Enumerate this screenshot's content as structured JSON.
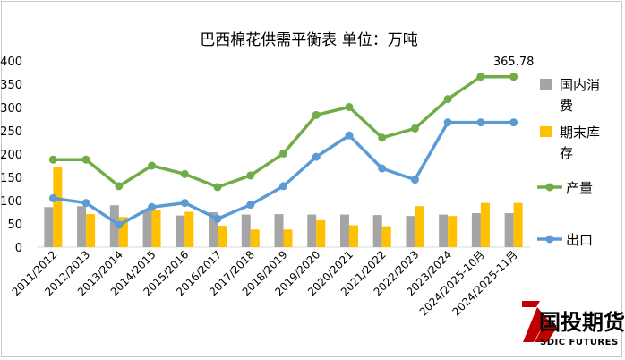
{
  "chart_data": {
    "type": "bar",
    "title": "巴西棉花供需平衡表 单位：万吨",
    "xlabel": "",
    "ylabel": "",
    "ylim": [
      0,
      400
    ],
    "yticks": [
      "0",
      "50",
      "100",
      "150",
      "200",
      "250",
      "300",
      "350",
      "400"
    ],
    "grid": false,
    "legend_position": "right",
    "categories": [
      "2011/2012",
      "2012/2013",
      "2013/2014",
      "2014/2015",
      "2015/2016",
      "2016/2017",
      "2017/2018",
      "2018/2019",
      "2019/2020",
      "2020/2021",
      "2021/2022",
      "2022/2023",
      "2023/2024",
      "2024/2025-10月",
      "2024/2025-11月"
    ],
    "series": [
      {
        "name": "国内消费",
        "kind": "bar",
        "color": "#a5a5a5",
        "values": [
          86,
          88,
          90,
          80,
          68,
          75,
          70,
          71,
          70,
          70,
          69,
          67,
          70,
          73,
          73
        ]
      },
      {
        "name": "期末库存",
        "kind": "bar",
        "color": "#ffc000",
        "values": [
          172,
          71,
          65,
          79,
          76,
          46,
          38,
          38,
          58,
          47,
          45,
          88,
          67,
          95,
          95
        ]
      },
      {
        "name": "产量",
        "kind": "line",
        "color": "#70ad47",
        "values": [
          188,
          188,
          131,
          175,
          157,
          129,
          154,
          201,
          284,
          301,
          235,
          255,
          318,
          366,
          365.78
        ]
      },
      {
        "name": "出口",
        "kind": "line",
        "color": "#5b9bd5",
        "values": [
          105,
          95,
          48,
          86,
          95,
          61,
          91,
          131,
          194,
          240,
          169,
          145,
          268,
          268,
          268
        ]
      }
    ],
    "annotations": [
      {
        "text": "365.78",
        "series": "产量",
        "index": 14
      }
    ]
  },
  "legend": [
    {
      "label_lines": [
        "国内消",
        "费"
      ],
      "marker": "bar",
      "color": "#a5a5a5"
    },
    {
      "label_lines": [
        "期末库",
        "存"
      ],
      "marker": "bar",
      "color": "#ffc000"
    },
    {
      "label_lines": [
        "产量"
      ],
      "marker": "line",
      "color": "#70ad47"
    },
    {
      "label_lines": [
        "出口"
      ],
      "marker": "line",
      "color": "#5b9bd5"
    }
  ],
  "logo": {
    "text_cn": "国投期货",
    "text_en": "SDIC FUTURES",
    "color": "#c00000"
  }
}
